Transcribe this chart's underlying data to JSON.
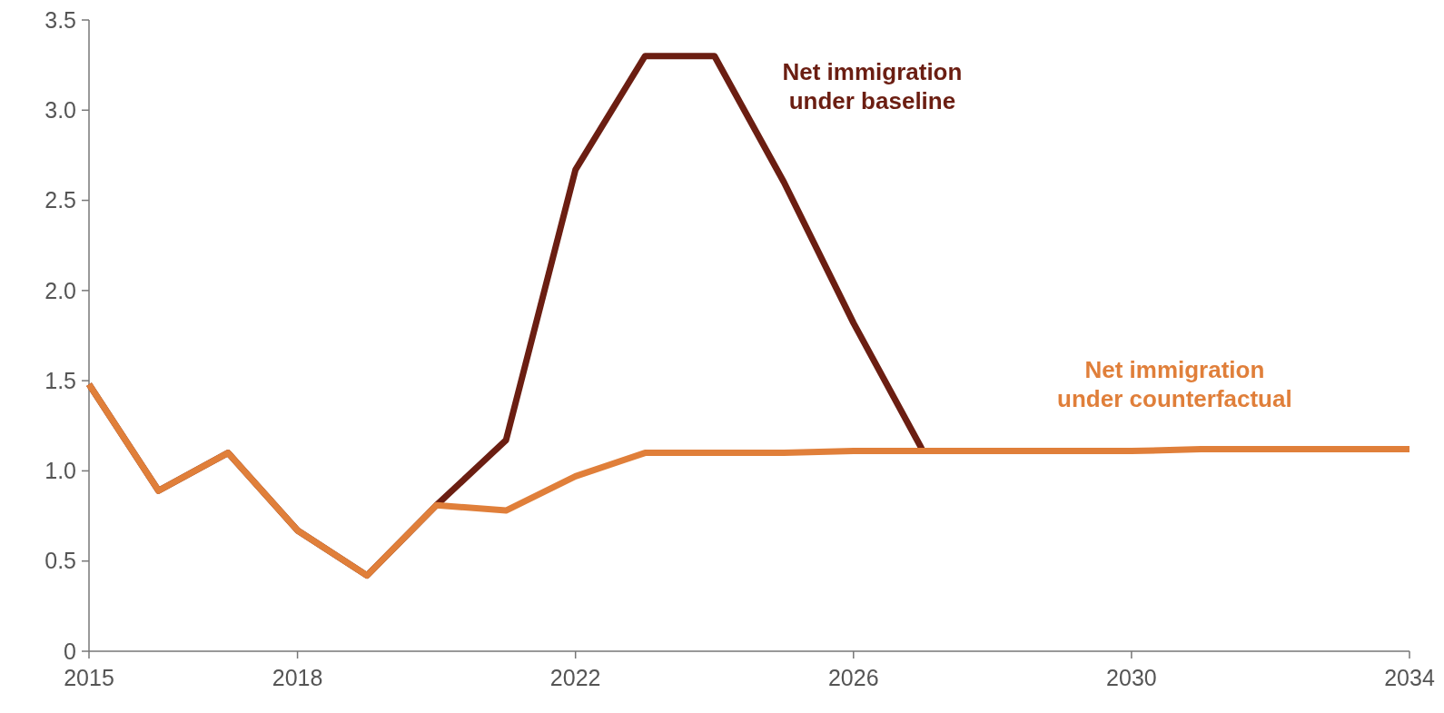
{
  "chart_data": {
    "type": "line",
    "x": [
      2015,
      2016,
      2017,
      2018,
      2019,
      2020,
      2021,
      2022,
      2023,
      2024,
      2025,
      2026,
      2027,
      2028,
      2029,
      2030,
      2031,
      2032,
      2033,
      2034
    ],
    "series": [
      {
        "name": "Net immigration under baseline",
        "color": "#6b1e12",
        "values": [
          1.48,
          0.89,
          1.1,
          0.67,
          0.42,
          0.81,
          1.17,
          2.67,
          3.3,
          3.3,
          2.6,
          1.82,
          1.11,
          null,
          null,
          null,
          null,
          null,
          null,
          null
        ]
      },
      {
        "name": "Net immigration under counterfactual",
        "color": "#e07f3a",
        "values": [
          1.48,
          0.89,
          1.1,
          0.67,
          0.42,
          0.81,
          0.78,
          0.97,
          1.1,
          1.1,
          1.1,
          1.11,
          1.11,
          1.11,
          1.11,
          1.11,
          1.12,
          1.12,
          1.12,
          1.12
        ]
      }
    ],
    "xlim": [
      2015,
      2034
    ],
    "xticks": [
      2015,
      2018,
      2022,
      2026,
      2030,
      2034
    ],
    "ylim": [
      0,
      3.5
    ],
    "yticks": [
      0,
      0.5,
      {
        "value": 1,
        "label": "1.0"
      },
      1.5,
      {
        "value": 2,
        "label": "2.0"
      },
      2.5,
      {
        "value": 3,
        "label": "3.0"
      },
      3.5
    ],
    "grid": false,
    "legend": false,
    "marker": "none",
    "line_style": "solid"
  }
}
